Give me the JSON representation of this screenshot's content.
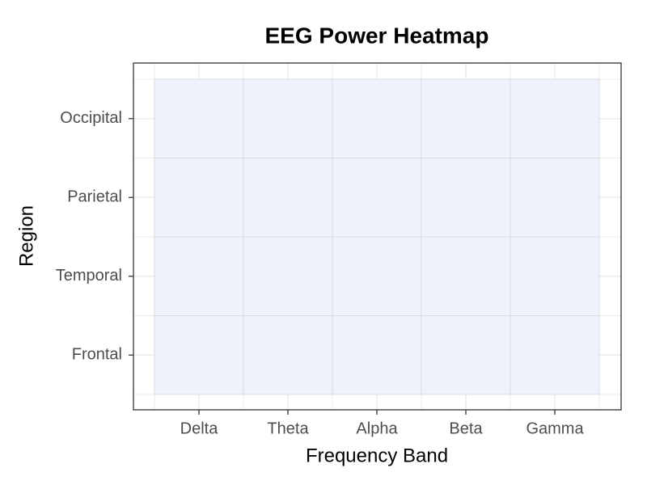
{
  "chart_data": {
    "type": "heatmap",
    "title": "EEG Power Heatmap",
    "x_label": "Frequency Band",
    "y_label": "Region",
    "x_categories": [
      "Delta",
      "Theta",
      "Alpha",
      "Beta",
      "Gamma"
    ],
    "y_categories": [
      "Frontal",
      "Temporal",
      "Parietal",
      "Occipital"
    ],
    "color": "#eef2fd",
    "grid": true
  }
}
